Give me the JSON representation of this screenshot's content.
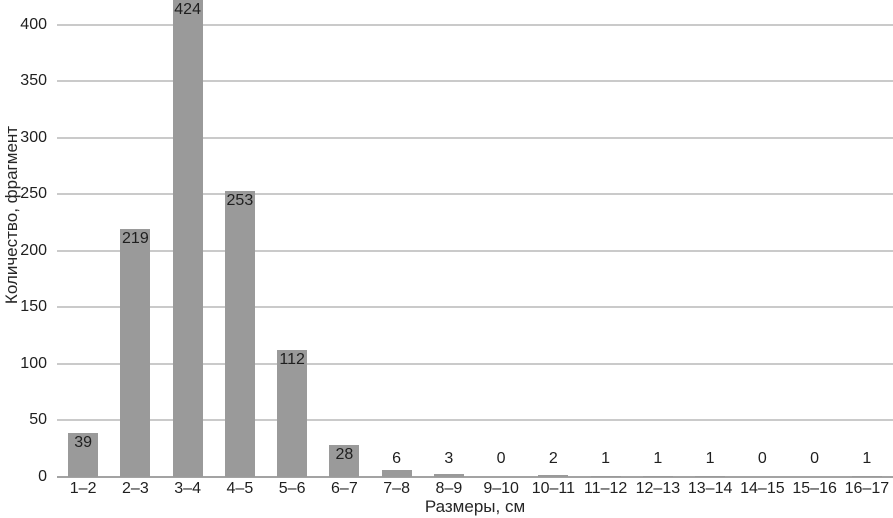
{
  "chart_data": {
    "type": "bar",
    "categories": [
      "1–2",
      "2–3",
      "3–4",
      "4–5",
      "5–6",
      "6–7",
      "7–8",
      "8–9",
      "9–10",
      "10–11",
      "11–12",
      "12–13",
      "13–14",
      "14–15",
      "15–16",
      "16–17"
    ],
    "values": [
      39,
      219,
      424,
      253,
      112,
      28,
      6,
      3,
      0,
      2,
      1,
      1,
      1,
      0,
      0,
      1
    ],
    "title": "",
    "xlabel": "Размеры, см",
    "ylabel": "Количество, фрагмент",
    "yticks": [
      0,
      50,
      100,
      150,
      200,
      250,
      300,
      350,
      400
    ],
    "ylim": [
      0,
      422
    ],
    "grid": true,
    "legend": false,
    "data_labels": true,
    "bar_color": "#9a9a9a",
    "gridline_color": "#cacaca",
    "axis_line_color": "#a3a3a3",
    "label_color": "#1f1f1f"
  }
}
